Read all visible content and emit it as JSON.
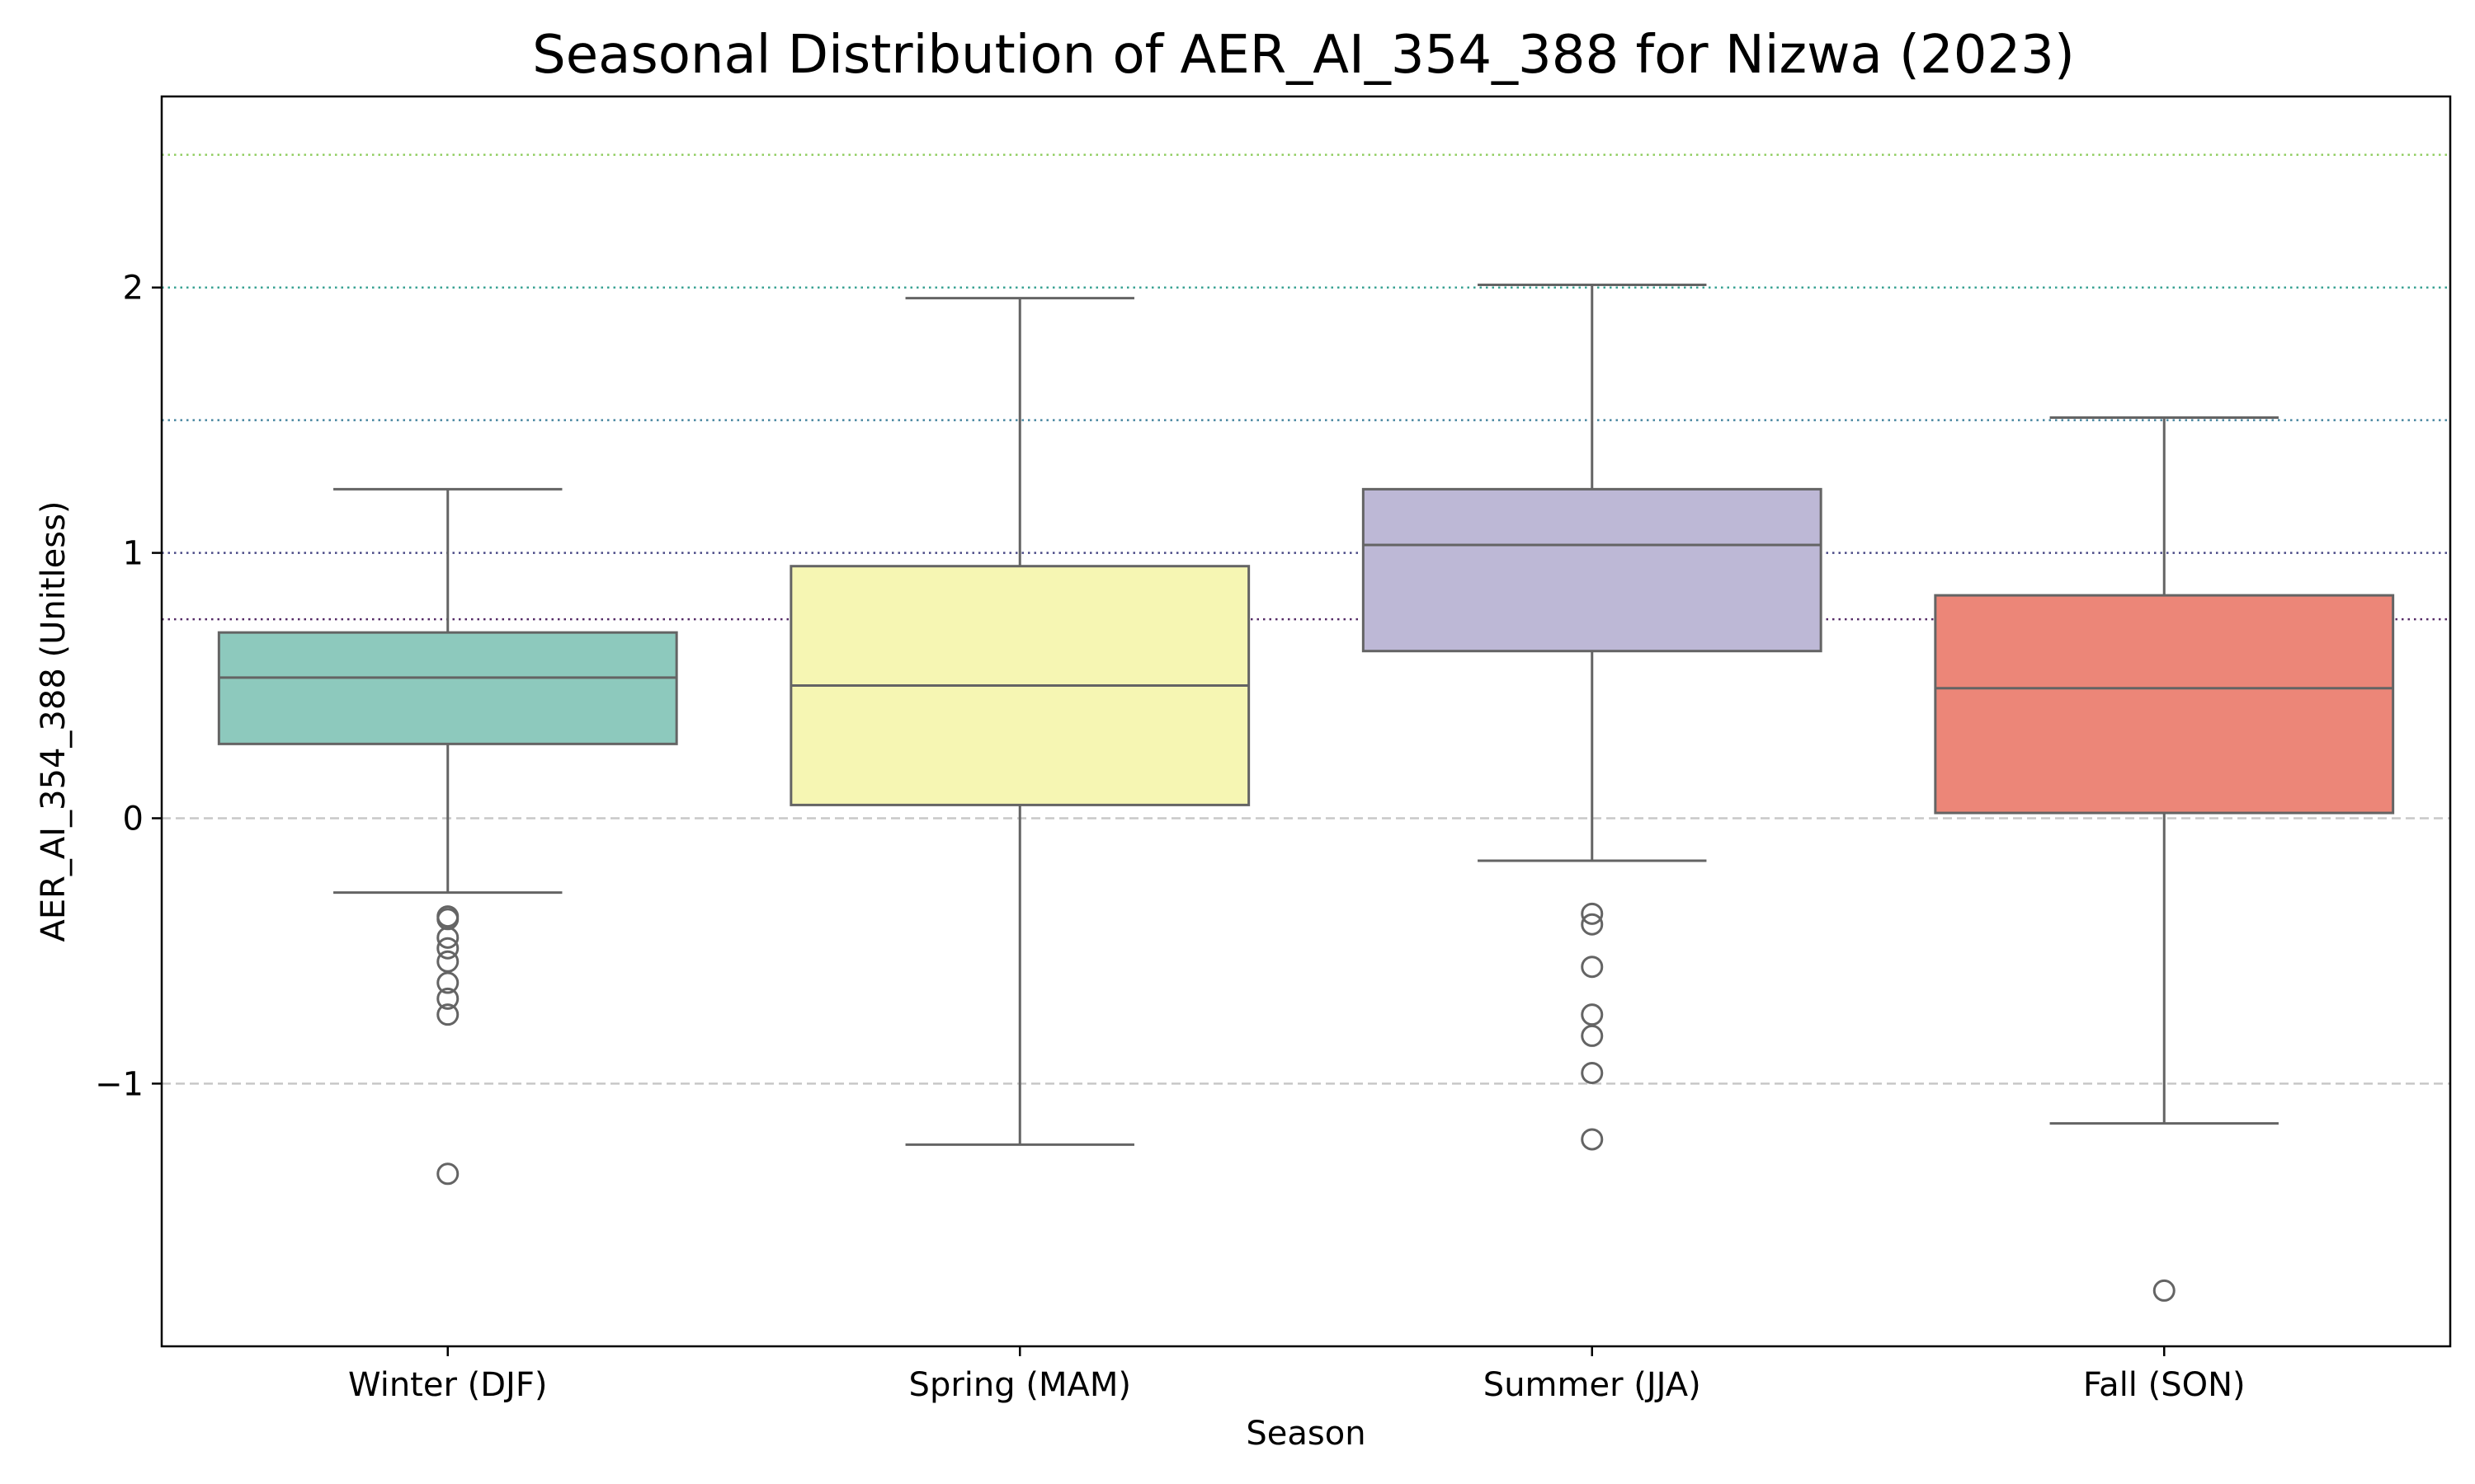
{
  "chart_data": {
    "type": "box",
    "title": "Seasonal Distribution of AER_AI_354_388 for Nizwa (2023)",
    "xlabel": "Season",
    "ylabel": "AER_AI_354_388 (Unitless)",
    "ylim": [
      -1.99,
      2.72
    ],
    "yticks": [
      -1,
      0,
      1,
      2
    ],
    "ytick_labels": [
      "−1",
      "0",
      "1",
      "2"
    ],
    "grid": false,
    "categories": [
      "Winter (DJF)",
      "Spring (MAM)",
      "Summer (JJA)",
      "Fall (SON)"
    ],
    "boxes": [
      {
        "q1": 0.28,
        "median": 0.53,
        "q3": 0.7,
        "whisker_low": -0.28,
        "whisker_high": 1.24,
        "outliers": [
          -0.37,
          -0.38,
          -0.45,
          -0.49,
          -0.54,
          -0.62,
          -0.68,
          -0.74,
          -1.34
        ],
        "color": "#8dc9bd"
      },
      {
        "q1": 0.05,
        "median": 0.5,
        "q3": 0.95,
        "whisker_low": -1.23,
        "whisker_high": 1.96,
        "outliers": [],
        "color": "#f6f6b3"
      },
      {
        "q1": 0.63,
        "median": 1.03,
        "q3": 1.24,
        "whisker_low": -0.16,
        "whisker_high": 2.01,
        "outliers": [
          -0.36,
          -0.4,
          -0.56,
          -0.74,
          -0.82,
          -0.96,
          -1.21
        ],
        "color": "#bdb8d6"
      },
      {
        "q1": 0.02,
        "median": 0.49,
        "q3": 0.84,
        "whisker_low": -1.15,
        "whisker_high": 1.51,
        "outliers": [
          -1.78
        ],
        "color": "#ec8678"
      }
    ],
    "reference_lines": [
      {
        "y": 0,
        "style": "dashed",
        "color": "#c8c8c8"
      },
      {
        "y": -1,
        "style": "dashed",
        "color": "#c8c8c8"
      },
      {
        "y": 0.75,
        "style": "dotted",
        "color": "#4b1f5e"
      },
      {
        "y": 1.0,
        "style": "dotted",
        "color": "#3f3f7f"
      },
      {
        "y": 1.5,
        "style": "dotted",
        "color": "#3d7f9a"
      },
      {
        "y": 2.0,
        "style": "dotted",
        "color": "#2f9e8e"
      },
      {
        "y": 2.5,
        "style": "dotted",
        "color": "#8ccc5a"
      }
    ]
  }
}
